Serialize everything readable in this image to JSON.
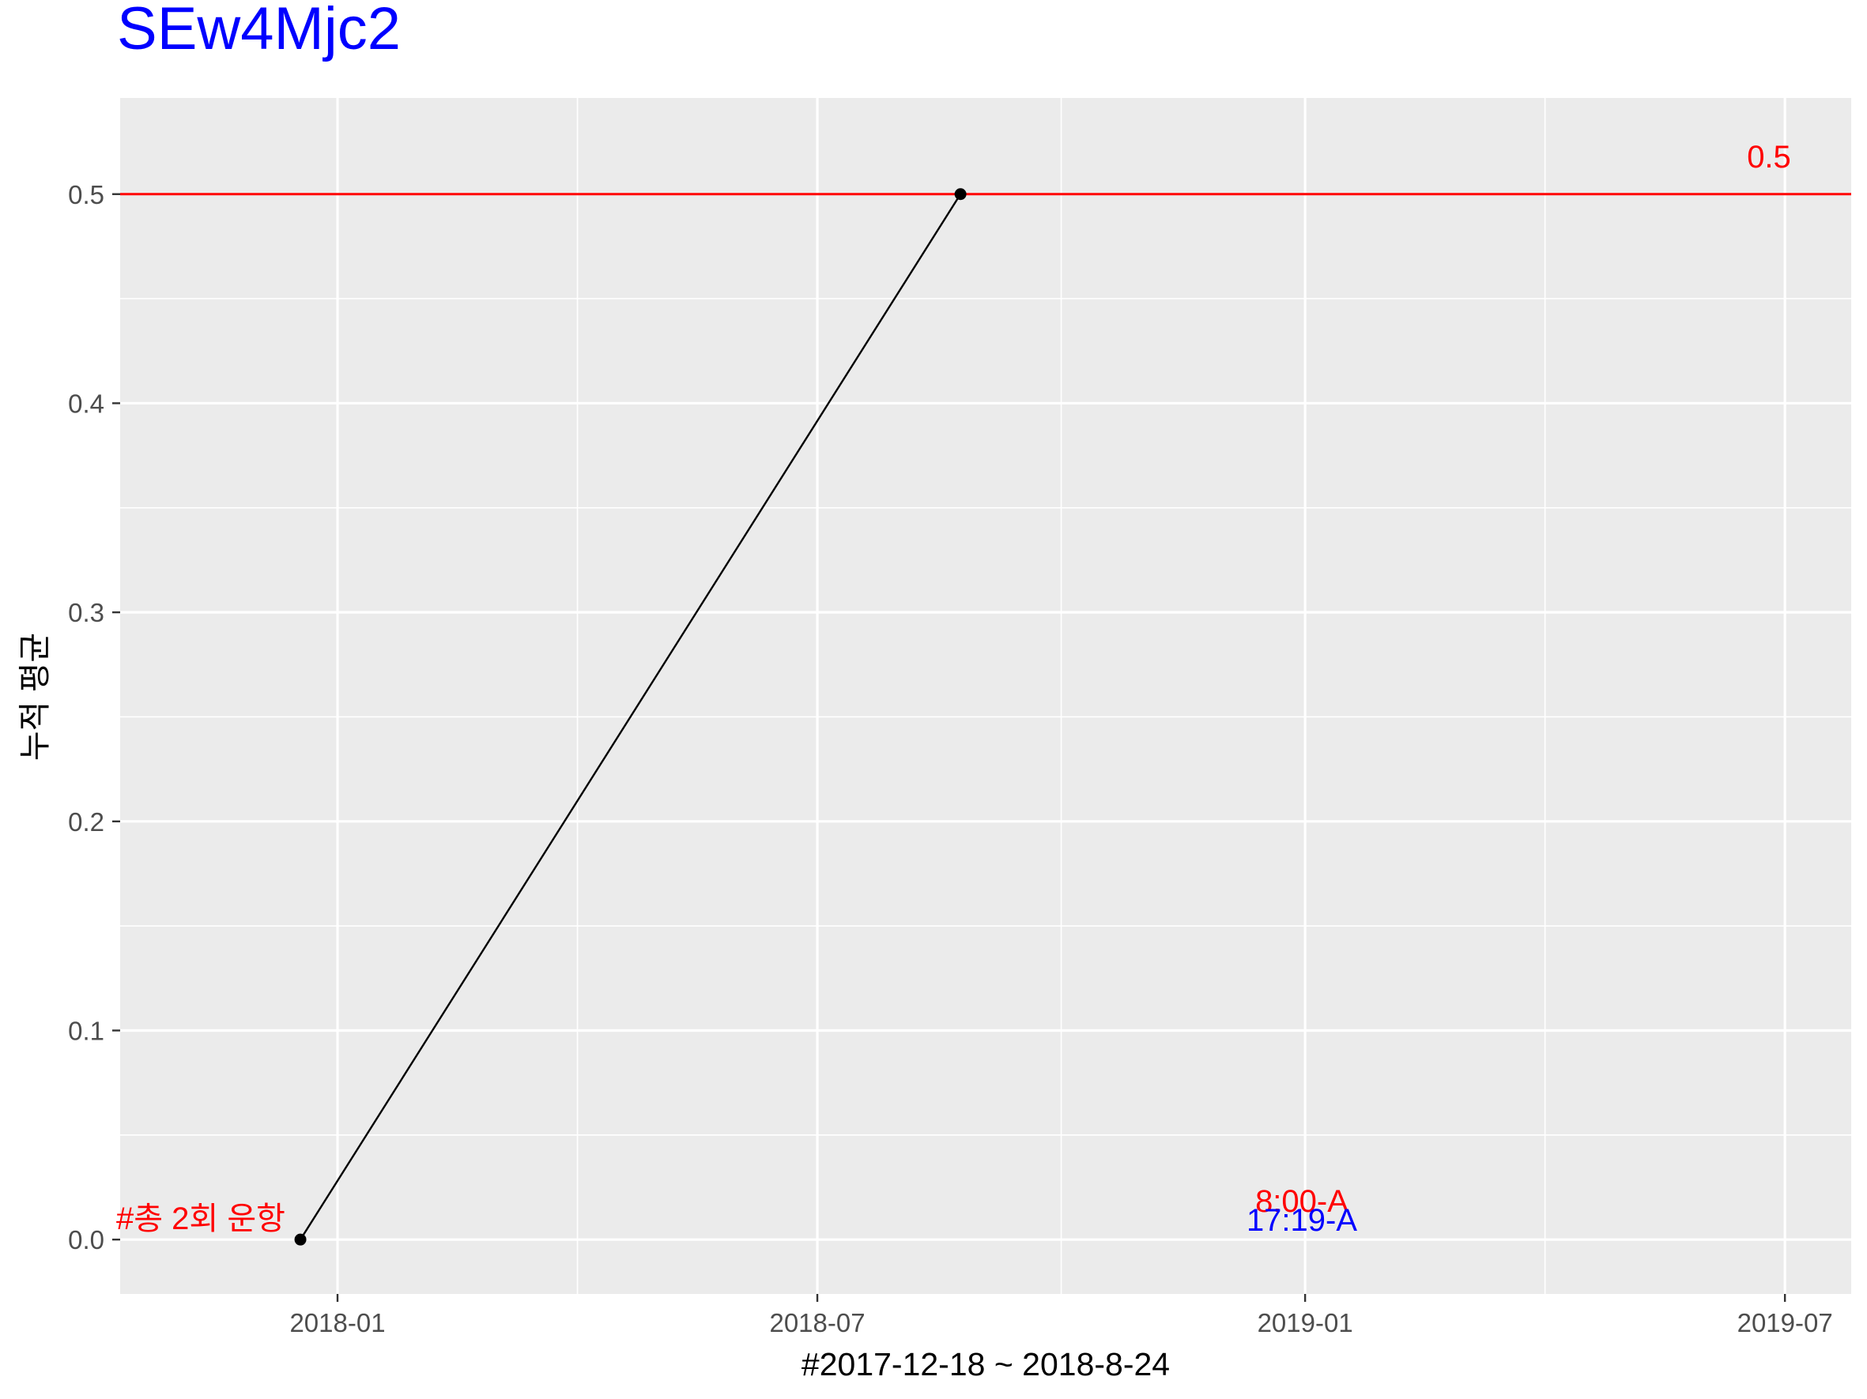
{
  "chart_data": {
    "type": "line",
    "title": "SEw4Mjc2",
    "xlabel": "#2017-12-18 ~ 2018-8-24",
    "ylabel": "누적 평균",
    "x_tick_labels": [
      "2018-01",
      "2018-07",
      "2019-01",
      "2019-07"
    ],
    "x_ticks": [
      "2018-01-01",
      "2018-07-01",
      "2019-01-01",
      "2019-07-01"
    ],
    "y_tick_labels": [
      "0.0",
      "0.1",
      "0.2",
      "0.3",
      "0.4",
      "0.5"
    ],
    "y_ticks": [
      0.0,
      0.1,
      0.2,
      0.3,
      0.4,
      0.5
    ],
    "xlim": [
      "2017-10-11",
      "2019-07-26"
    ],
    "ylim": [
      -0.026,
      0.546
    ],
    "grid": true,
    "series": [
      {
        "x": [
          "2017-12-18",
          "2018-08-24"
        ],
        "y": [
          0.0,
          0.5
        ]
      }
    ],
    "reference_line": {
      "y": 0.5,
      "label": "0.5",
      "color": "#ff0000"
    },
    "annotations": [
      {
        "text": "#총 2회 운항",
        "color": "#ff0000"
      },
      {
        "text": "8:00-A",
        "color": "#ff0000"
      },
      {
        "text": "17:19-A",
        "color": "#0000ff"
      }
    ]
  },
  "colors": {
    "title": "#0000ff",
    "panel_background": "#ebebeb",
    "grid_line": "#ffffff",
    "series_line": "#000000",
    "reference_line": "#ff0000"
  }
}
